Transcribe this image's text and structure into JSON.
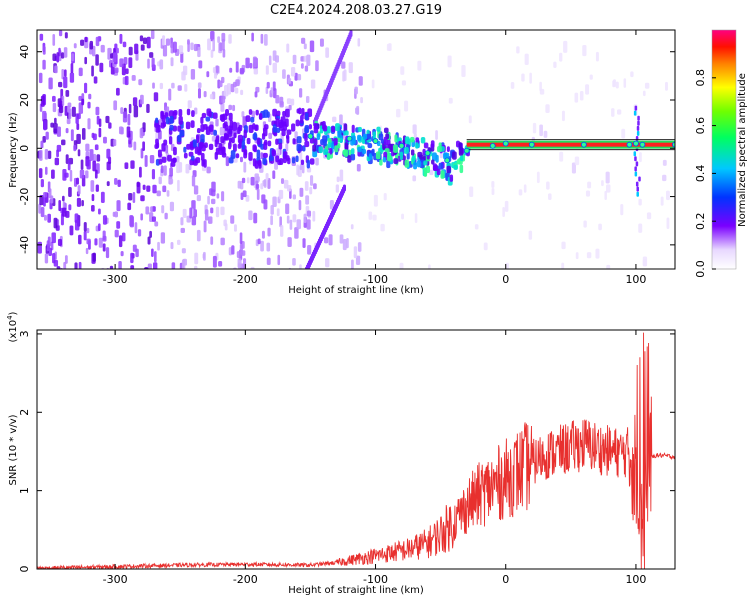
{
  "title": "C2E4.2024.208.03.27.G19",
  "chart_data": [
    {
      "type": "heatmap",
      "xlabel": "Height of straight line (km)",
      "ylabel": "Frequency (Hz)",
      "xlim": [
        -360,
        130
      ],
      "ylim": [
        -50,
        49
      ],
      "xticks": [
        -300,
        -200,
        -100,
        0,
        100
      ],
      "yticks": [
        -40,
        -20,
        0,
        20,
        40
      ],
      "colorbar": {
        "label": "Normalized spectral amplitude",
        "range": [
          0,
          1
        ],
        "ticks": [
          0.0,
          0.2,
          0.4,
          0.6,
          0.8
        ],
        "colormap": "rainbow"
      },
      "tone_trace": {
        "x": [
          -150,
          -120,
          -100,
          -80,
          -60,
          -45,
          -30,
          -10,
          0,
          20,
          60,
          95,
          100,
          105,
          130
        ],
        "y": [
          5,
          4,
          3,
          1,
          -2,
          -5,
          -1,
          1,
          2,
          1.5,
          1.5,
          1.5,
          2,
          1.5,
          1.5
        ]
      }
    },
    {
      "type": "line",
      "xlabel": "Height of straight line (km)",
      "ylabel": "SNR (10 * v/v)",
      "y_multiplier": "(x10",
      "y_multiplier_exp": "4",
      "y_multiplier_close": ")",
      "xlim": [
        -360,
        130
      ],
      "ylim": [
        0,
        3.05
      ],
      "xticks": [
        -300,
        -200,
        -100,
        0,
        100
      ],
      "yticks": [
        0,
        1,
        2,
        3
      ],
      "series": [
        {
          "color": "#e8302e",
          "x": [
            -360,
            -300,
            -250,
            -200,
            -150,
            -130,
            -110,
            -90,
            -75,
            -60,
            -50,
            -40,
            -30,
            -20,
            -10,
            0,
            10,
            20,
            30,
            40,
            50,
            60,
            70,
            80,
            90,
            95,
            100,
            102,
            104,
            106,
            108,
            110,
            115,
            120,
            130
          ],
          "y": [
            0.01,
            0.03,
            0.05,
            0.06,
            0.05,
            0.08,
            0.14,
            0.2,
            0.25,
            0.33,
            0.45,
            0.6,
            0.8,
            0.95,
            1.05,
            1.15,
            1.25,
            1.35,
            1.45,
            1.5,
            1.55,
            1.6,
            1.55,
            1.5,
            1.48,
            1.5,
            1.45,
            1.2,
            0.6,
            0.4,
            1.0,
            1.4,
            1.45,
            1.45,
            1.43
          ]
        }
      ]
    }
  ]
}
